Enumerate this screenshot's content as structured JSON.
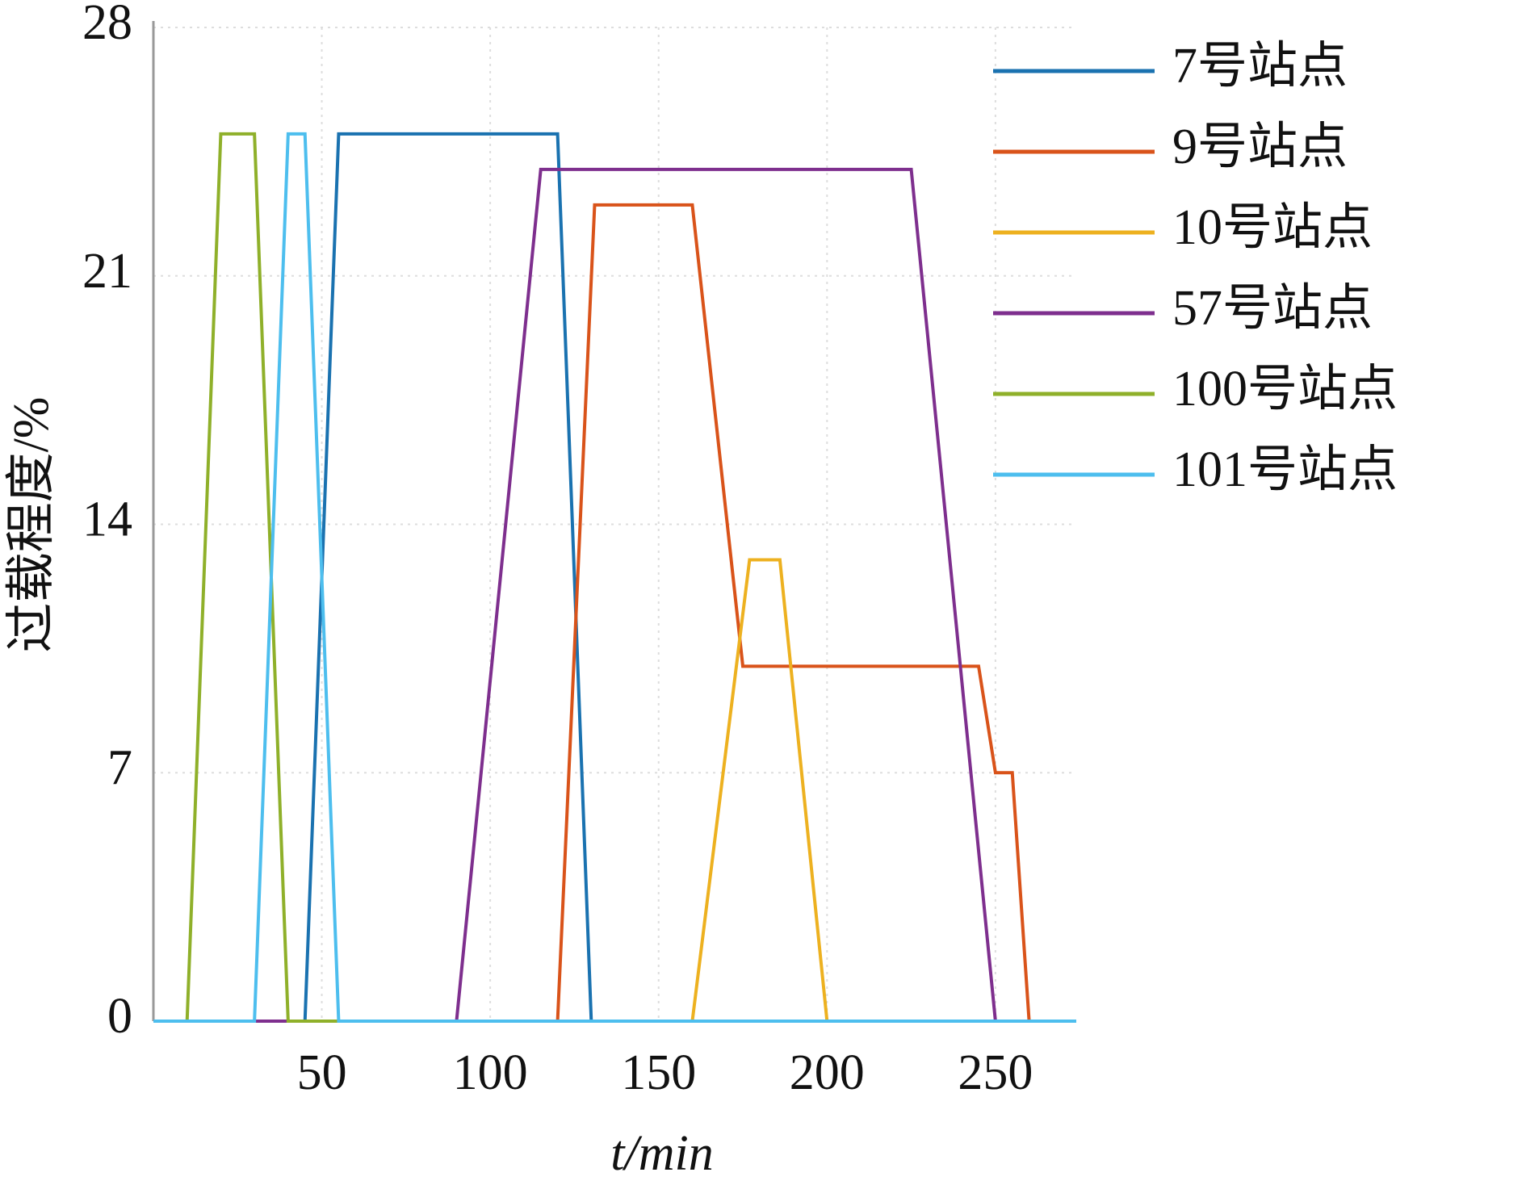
{
  "chart_data": {
    "type": "line",
    "x_label": "t/min",
    "y_label": "过载程度/%",
    "xlim": [
      0,
      274
    ],
    "ylim": [
      0,
      28
    ],
    "xticks": [
      50,
      100,
      150,
      200,
      250
    ],
    "yticks": [
      0,
      7,
      14,
      21,
      28
    ],
    "grid": true,
    "legend": "upper right",
    "series": [
      {
        "name": "7号站点",
        "color": "#1a72b0",
        "x": [
          0,
          45,
          55,
          120,
          130,
          274
        ],
        "values": [
          0,
          0,
          25,
          25,
          0,
          0
        ]
      },
      {
        "name": "9号站点",
        "color": "#d9531a",
        "x": [
          0,
          120,
          131,
          160,
          175,
          245,
          250,
          255,
          260,
          274
        ],
        "values": [
          0,
          0,
          23,
          23,
          10,
          10,
          7,
          7,
          0,
          0
        ]
      },
      {
        "name": "10号站点",
        "color": "#edb120",
        "x": [
          0,
          160,
          177,
          186,
          200,
          274
        ],
        "values": [
          0,
          0,
          13,
          13,
          0,
          0
        ]
      },
      {
        "name": "57号站点",
        "color": "#7e2f8e",
        "x": [
          0,
          90,
          115,
          225,
          250,
          274
        ],
        "values": [
          0,
          0,
          24,
          24,
          0,
          0
        ]
      },
      {
        "name": "100号站点",
        "color": "#8fb02a",
        "x": [
          0,
          10,
          20,
          30,
          40,
          274
        ],
        "values": [
          0,
          0,
          25,
          25,
          0,
          0
        ]
      },
      {
        "name": "101号站点",
        "color": "#4dbeee",
        "x": [
          0,
          30,
          40,
          45,
          55,
          274
        ],
        "values": [
          0,
          0,
          25,
          25,
          0,
          0
        ]
      }
    ]
  }
}
